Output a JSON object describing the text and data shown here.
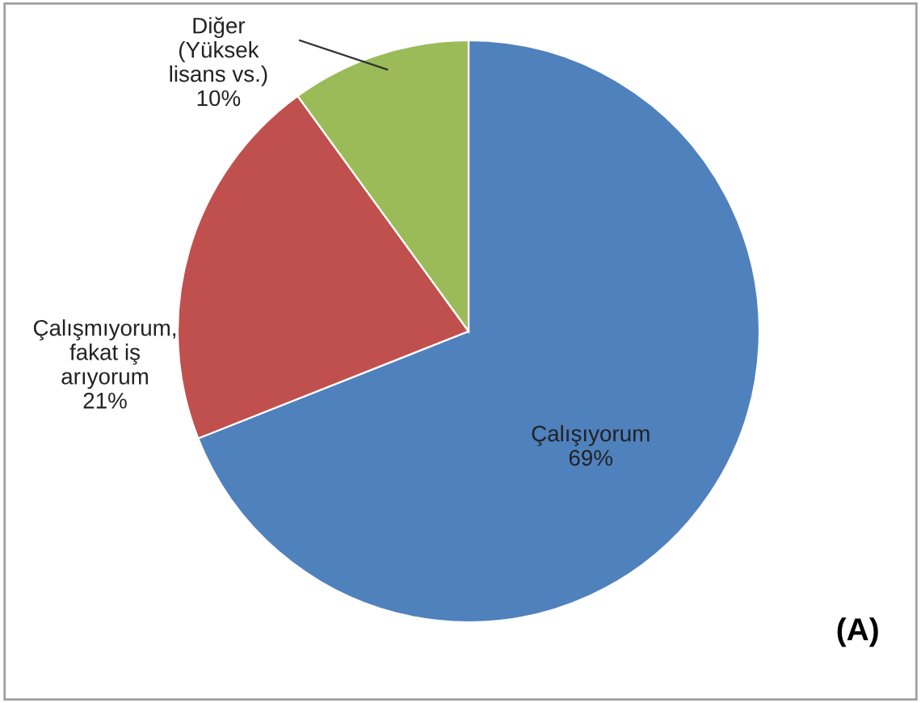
{
  "chart_data": {
    "type": "pie",
    "categories": [
      "Çalışıyorum",
      "Çalışmıyorum, fakat iş arıyorum",
      "Diğer (Yüksek lisans vs.)"
    ],
    "values": [
      69,
      21,
      10
    ],
    "colors": [
      "#4f81bd",
      "#c0504d",
      "#9bbb59"
    ],
    "value_labels": [
      "69%",
      "21%",
      "10%"
    ],
    "annotations": [
      "(A)"
    ]
  }
}
